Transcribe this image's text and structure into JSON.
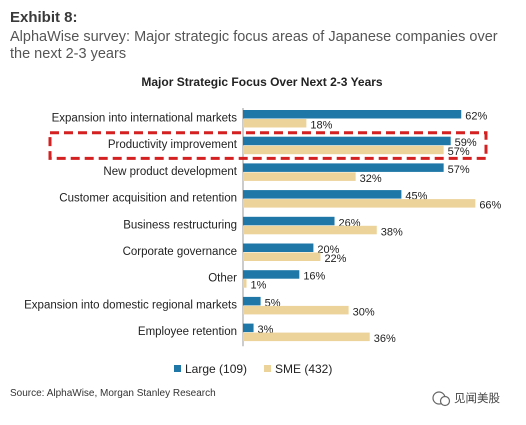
{
  "header": {
    "exhibit": "Exhibit 8:",
    "subtitle": "AlphaWise survey: Major strategic focus areas of Japanese companies over the next 2-3 years"
  },
  "chart_data": {
    "type": "bar",
    "orientation": "horizontal",
    "title": "Major Strategic Focus Over Next 2-3 Years",
    "categories": [
      "Expansion into international markets",
      "Productivity improvement",
      "New product development",
      "Customer acquisition and retention",
      "Business restructuring",
      "Corporate governance",
      "Other",
      "Expansion into domestic regional markets",
      "Employee retention"
    ],
    "series": [
      {
        "name": "Large (109)",
        "values": [
          62,
          59,
          57,
          45,
          26,
          20,
          16,
          5,
          3
        ]
      },
      {
        "name": "SME (432)",
        "values": [
          18,
          57,
          32,
          66,
          38,
          22,
          1,
          30,
          36
        ]
      }
    ],
    "value_suffix": "%",
    "xlim": [
      0,
      70
    ],
    "grid": false,
    "legend": "bottom",
    "highlight_category": "Productivity improvement",
    "colors": {
      "Large (109)": "#1f77a8",
      "SME (432)": "#ecd39a",
      "highlight": "#d42020"
    }
  },
  "footer": {
    "source": "Source: AlphaWise, Morgan Stanley Research",
    "watermark": "见闻美股"
  }
}
